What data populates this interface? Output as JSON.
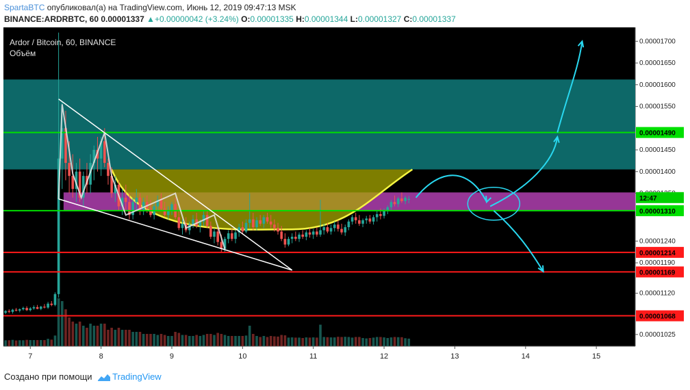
{
  "header": {
    "author": "SpartaBTC",
    "published_text": "опубликовал(а) на TradingView.com, Июнь 12, 2019 09:47:13 MSK",
    "symbol_line": "BINANCE:ARDRBTC, 60",
    "last_price": "0.00001337",
    "change": "+0.00000042 (+3.24%)",
    "open_label": "O:",
    "open": "0.00001335",
    "high_label": "H:",
    "high": "0.00001344",
    "low_label": "L:",
    "low": "0.00001327",
    "close_label": "C:",
    "close": "0.00001337"
  },
  "footer": {
    "created_with": "Создано при помощи",
    "brand": "TradingView"
  },
  "chart_data": {
    "type": "candlestick",
    "title": "Ardor / Bitcoin, 60, BINANCE",
    "volume_label": "Объём",
    "x_ticks": [
      "7",
      "8",
      "9",
      "10",
      "11",
      "12",
      "13",
      "14",
      "15"
    ],
    "y_ticks": [
      "0.00001700",
      "0.00001650",
      "0.00001600",
      "0.00001550",
      "0.00001450",
      "0.00001400",
      "0.00001350",
      "0.00001240",
      "0.00001190",
      "0.00001120",
      "0.00001025"
    ],
    "ylim": [
      9.98e-06,
      1.732e-05
    ],
    "xlim": [
      6.62,
      15.55
    ],
    "current_price_tag": "0.00001337",
    "countdown": "12:47",
    "levels": [
      {
        "value": 1.49e-05,
        "label": "0.00001490",
        "color": "#00e000"
      },
      {
        "value": 1.31e-05,
        "label": "0.00001310",
        "color": "#00e000"
      },
      {
        "value": 1.214e-05,
        "label": "0.00001214",
        "color": "#ff1a1a"
      },
      {
        "value": 1.169e-05,
        "label": "0.00001169",
        "color": "#ff1a1a"
      },
      {
        "value": 1.068e-05,
        "label": "0.00001068",
        "color": "#ff1a1a"
      }
    ],
    "zones": [
      {
        "from": 1.405e-05,
        "to": 1.612e-05,
        "color": "#0f7a7a"
      },
      {
        "from": 1.309e-05,
        "to": 1.352e-05,
        "color": "#b040b0"
      }
    ],
    "cup": {
      "left": [
        8.15,
        1.405e-05
      ],
      "bottom": [
        10.7,
        1.267e-05
      ],
      "right": [
        12.4,
        1.405e-05
      ],
      "color": "#f5f542"
    },
    "wedge": {
      "top": [
        [
          7.4,
          1.567e-05
        ],
        [
          10.7,
          1.173e-05
        ]
      ],
      "bottom": [
        [
          7.4,
          1.337e-05
        ],
        [
          10.7,
          1.173e-05
        ]
      ]
    },
    "candles": [
      [
        6.65,
        1.075e-05,
        1.081e-05,
        1.072e-05,
        1.079e-05
      ],
      [
        6.7,
        1.079e-05,
        1.083e-05,
        1.074e-05,
        1.077e-05
      ],
      [
        6.75,
        1.077e-05,
        1.084e-05,
        1.073e-05,
        1.082e-05
      ],
      [
        6.8,
        1.082e-05,
        1.086e-05,
        1.078e-05,
        1.08e-05
      ],
      [
        6.85,
        1.08e-05,
        1.085e-05,
        1.076e-05,
        1.083e-05
      ],
      [
        6.9,
        1.083e-05,
        1.089e-05,
        1.08e-05,
        1.086e-05
      ],
      [
        6.95,
        1.086e-05,
        1.09e-05,
        1.079e-05,
        1.081e-05
      ],
      [
        7.0,
        1.081e-05,
        1.088e-05,
        1.078e-05,
        1.085e-05
      ],
      [
        7.05,
        1.085e-05,
        1.092e-05,
        1.082e-05,
        1.088e-05
      ],
      [
        7.1,
        1.088e-05,
        1.093e-05,
        1.083e-05,
        1.084e-05
      ],
      [
        7.15,
        1.084e-05,
        1.091e-05,
        1.081e-05,
        1.089e-05
      ],
      [
        7.2,
        1.089e-05,
        1.095e-05,
        1.085e-05,
        1.087e-05
      ],
      [
        7.25,
        1.087e-05,
        1.1e-05,
        1.084e-05,
        1.096e-05
      ],
      [
        7.3,
        1.096e-05,
        1.102e-05,
        1.09e-05,
        1.093e-05
      ],
      [
        7.35,
        1.093e-05,
        1.122e-05,
        1.09e-05,
        1.118e-05
      ],
      [
        7.4,
        1.118e-05,
        1.72e-05,
        1.11e-05,
        1.43e-05
      ],
      [
        7.45,
        1.43e-05,
        1.56e-05,
        1.36e-05,
        1.5e-05
      ],
      [
        7.5,
        1.5e-05,
        1.54e-05,
        1.38e-05,
        1.42e-05
      ],
      [
        7.55,
        1.42e-05,
        1.47e-05,
        1.35e-05,
        1.39e-05
      ],
      [
        7.6,
        1.39e-05,
        1.44e-05,
        1.34e-05,
        1.36e-05
      ],
      [
        7.65,
        1.36e-05,
        1.42e-05,
        1.33e-05,
        1.4e-05
      ],
      [
        7.7,
        1.4e-05,
        1.43e-05,
        1.33e-05,
        1.34e-05
      ],
      [
        7.75,
        1.34e-05,
        1.4e-05,
        1.32e-05,
        1.39e-05
      ],
      [
        7.8,
        1.39e-05,
        1.42e-05,
        1.35e-05,
        1.37e-05
      ],
      [
        7.85,
        1.37e-05,
        1.44e-05,
        1.35e-05,
        1.42e-05
      ],
      [
        7.9,
        1.42e-05,
        1.46e-05,
        1.38e-05,
        1.45e-05
      ],
      [
        7.95,
        1.45e-05,
        1.48e-05,
        1.4e-05,
        1.43e-05
      ],
      [
        8.0,
        1.43e-05,
        1.48e-05,
        1.39e-05,
        1.47e-05
      ],
      [
        8.05,
        1.47e-05,
        1.5e-05,
        1.41e-05,
        1.42e-05
      ],
      [
        8.1,
        1.42e-05,
        1.43e-05,
        1.37e-05,
        1.39e-05
      ],
      [
        8.15,
        1.39e-05,
        1.41e-05,
        1.34e-05,
        1.35e-05
      ],
      [
        8.2,
        1.35e-05,
        1.39e-05,
        1.33e-05,
        1.37e-05
      ],
      [
        8.25,
        1.37e-05,
        1.38e-05,
        1.31e-05,
        1.32e-05
      ],
      [
        8.3,
        1.32e-05,
        1.36e-05,
        1.3e-05,
        1.34e-05
      ],
      [
        8.35,
        1.34e-05,
        1.37e-05,
        1.31e-05,
        1.33e-05
      ],
      [
        8.4,
        1.33e-05,
        1.35e-05,
        1.29e-05,
        1.3e-05
      ],
      [
        8.45,
        1.3e-05,
        1.34e-05,
        1.29e-05,
        1.33e-05
      ],
      [
        8.5,
        1.33e-05,
        1.36e-05,
        1.31e-05,
        1.34e-05
      ],
      [
        8.55,
        1.34e-05,
        1.35e-05,
        1.3e-05,
        1.31e-05
      ],
      [
        8.6,
        1.31e-05,
        1.34e-05,
        1.3e-05,
        1.33e-05
      ],
      [
        8.65,
        1.33e-05,
        1.345e-05,
        1.305e-05,
        1.315e-05
      ],
      [
        8.7,
        1.315e-05,
        1.335e-05,
        1.295e-05,
        1.3e-05
      ],
      [
        8.75,
        1.3e-05,
        1.33e-05,
        1.29e-05,
        1.32e-05
      ],
      [
        8.8,
        1.32e-05,
        1.345e-05,
        1.31e-05,
        1.335e-05
      ],
      [
        8.85,
        1.335e-05,
        1.35e-05,
        1.31e-05,
        1.315e-05
      ],
      [
        8.9,
        1.315e-05,
        1.33e-05,
        1.295e-05,
        1.3e-05
      ],
      [
        8.95,
        1.3e-05,
        1.32e-05,
        1.29e-05,
        1.31e-05
      ],
      [
        9.0,
        1.31e-05,
        1.33e-05,
        1.3e-05,
        1.325e-05
      ],
      [
        9.05,
        1.325e-05,
        1.34e-05,
        1.29e-05,
        1.295e-05
      ],
      [
        9.1,
        1.295e-05,
        1.31e-05,
        1.265e-05,
        1.27e-05
      ],
      [
        9.15,
        1.27e-05,
        1.29e-05,
        1.255e-05,
        1.28e-05
      ],
      [
        9.2,
        1.28e-05,
        1.295e-05,
        1.26e-05,
        1.265e-05
      ],
      [
        9.25,
        1.265e-05,
        1.285e-05,
        1.255e-05,
        1.278e-05
      ],
      [
        9.3,
        1.278e-05,
        1.3e-05,
        1.27e-05,
        1.29e-05
      ],
      [
        9.35,
        1.29e-05,
        1.305e-05,
        1.27e-05,
        1.275e-05
      ],
      [
        9.4,
        1.275e-05,
        1.29e-05,
        1.26e-05,
        1.285e-05
      ],
      [
        9.45,
        1.285e-05,
        1.31e-05,
        1.275e-05,
        1.3e-05
      ],
      [
        9.5,
        1.3e-05,
        1.31e-05,
        1.27e-05,
        1.275e-05
      ],
      [
        9.55,
        1.275e-05,
        1.285e-05,
        1.245e-05,
        1.25e-05
      ],
      [
        9.6,
        1.25e-05,
        1.27e-05,
        1.235e-05,
        1.262e-05
      ],
      [
        9.65,
        1.262e-05,
        1.275e-05,
        1.23e-05,
        1.238e-05
      ],
      [
        9.7,
        1.238e-05,
        1.255e-05,
        1.215e-05,
        1.222e-05
      ],
      [
        9.75,
        1.222e-05,
        1.25e-05,
        1.215e-05,
        1.245e-05
      ],
      [
        9.8,
        1.245e-05,
        1.265e-05,
        1.235e-05,
        1.258e-05
      ],
      [
        9.85,
        1.258e-05,
        1.27e-05,
        1.24e-05,
        1.245e-05
      ],
      [
        9.9,
        1.245e-05,
        1.265e-05,
        1.235e-05,
        1.26e-05
      ],
      [
        9.95,
        1.26e-05,
        1.28e-05,
        1.25e-05,
        1.272e-05
      ],
      [
        10.0,
        1.272e-05,
        1.285e-05,
        1.255e-05,
        1.262e-05
      ],
      [
        10.05,
        1.262e-05,
        1.29e-05,
        1.258e-05,
        1.282e-05
      ],
      [
        10.1,
        1.282e-05,
        1.35e-05,
        1.27e-05,
        1.29e-05
      ],
      [
        10.15,
        1.29e-05,
        1.305e-05,
        1.265e-05,
        1.272e-05
      ],
      [
        10.2,
        1.272e-05,
        1.295e-05,
        1.265e-05,
        1.288e-05
      ],
      [
        10.25,
        1.288e-05,
        1.3e-05,
        1.275e-05,
        1.28e-05
      ],
      [
        10.3,
        1.28e-05,
        1.3e-05,
        1.27e-05,
        1.295e-05
      ],
      [
        10.35,
        1.295e-05,
        1.305e-05,
        1.28e-05,
        1.285e-05
      ],
      [
        10.4,
        1.285e-05,
        1.3e-05,
        1.27e-05,
        1.278e-05
      ],
      [
        10.45,
        1.278e-05,
        1.29e-05,
        1.262e-05,
        1.27e-05
      ],
      [
        10.5,
        1.27e-05,
        1.282e-05,
        1.255e-05,
        1.262e-05
      ],
      [
        10.55,
        1.262e-05,
        1.275e-05,
        1.24e-05,
        1.245e-05
      ],
      [
        10.6,
        1.245e-05,
        1.258e-05,
        1.225e-05,
        1.232e-05
      ],
      [
        10.65,
        1.232e-05,
        1.25e-05,
        1.228e-05,
        1.245e-05
      ],
      [
        10.7,
        1.245e-05,
        1.258e-05,
        1.235e-05,
        1.25e-05
      ],
      [
        10.75,
        1.25e-05,
        1.262e-05,
        1.24e-05,
        1.245e-05
      ],
      [
        10.8,
        1.245e-05,
        1.26e-05,
        1.238e-05,
        1.255e-05
      ],
      [
        10.85,
        1.255e-05,
        1.265e-05,
        1.245e-05,
        1.25e-05
      ],
      [
        10.9,
        1.25e-05,
        1.265e-05,
        1.242e-05,
        1.26e-05
      ],
      [
        10.95,
        1.26e-05,
        1.27e-05,
        1.248e-05,
        1.255e-05
      ],
      [
        11.0,
        1.255e-05,
        1.268e-05,
        1.245e-05,
        1.262e-05
      ],
      [
        11.05,
        1.262e-05,
        1.272e-05,
        1.25e-05,
        1.255e-05
      ],
      [
        11.1,
        1.255e-05,
        1.335e-05,
        1.25e-05,
        1.265e-05
      ],
      [
        11.15,
        1.265e-05,
        1.28e-05,
        1.255e-05,
        1.272e-05
      ],
      [
        11.2,
        1.272e-05,
        1.282e-05,
        1.258e-05,
        1.262e-05
      ],
      [
        11.25,
        1.262e-05,
        1.278e-05,
        1.255e-05,
        1.27e-05
      ],
      [
        11.3,
        1.27e-05,
        1.285e-05,
        1.262e-05,
        1.278e-05
      ],
      [
        11.35,
        1.278e-05,
        1.288e-05,
        1.262e-05,
        1.268e-05
      ],
      [
        11.4,
        1.268e-05,
        1.28e-05,
        1.255e-05,
        1.26e-05
      ],
      [
        11.45,
        1.26e-05,
        1.278e-05,
        1.252e-05,
        1.272e-05
      ],
      [
        11.5,
        1.272e-05,
        1.29e-05,
        1.265e-05,
        1.285e-05
      ],
      [
        11.55,
        1.285e-05,
        1.3e-05,
        1.278e-05,
        1.295e-05
      ],
      [
        11.6,
        1.295e-05,
        1.305e-05,
        1.28e-05,
        1.288e-05
      ],
      [
        11.65,
        1.288e-05,
        1.3e-05,
        1.275e-05,
        1.28e-05
      ],
      [
        11.7,
        1.28e-05,
        1.292e-05,
        1.272e-05,
        1.288e-05
      ],
      [
        11.75,
        1.288e-05,
        1.298e-05,
        1.28e-05,
        1.292e-05
      ],
      [
        11.8,
        1.292e-05,
        1.3e-05,
        1.28e-05,
        1.285e-05
      ],
      [
        11.85,
        1.285e-05,
        1.3e-05,
        1.278e-05,
        1.295e-05
      ],
      [
        11.9,
        1.295e-05,
        1.31e-05,
        1.285e-05,
        1.302e-05
      ],
      [
        11.95,
        1.302e-05,
        1.315e-05,
        1.29e-05,
        1.298e-05
      ],
      [
        12.0,
        1.298e-05,
        1.315e-05,
        1.292e-05,
        1.31e-05
      ],
      [
        12.05,
        1.31e-05,
        1.322e-05,
        1.302e-05,
        1.318e-05
      ],
      [
        12.1,
        1.318e-05,
        1.335e-05,
        1.312e-05,
        1.33e-05
      ],
      [
        12.15,
        1.33e-05,
        1.345e-05,
        1.32e-05,
        1.325e-05
      ],
      [
        12.2,
        1.325e-05,
        1.342e-05,
        1.318e-05,
        1.338e-05
      ],
      [
        12.25,
        1.338e-05,
        1.352e-05,
        1.328e-05,
        1.332e-05
      ],
      [
        12.3,
        1.332e-05,
        1.344e-05,
        1.325e-05,
        1.34e-05
      ],
      [
        12.35,
        1.335e-05,
        1.344e-05,
        1.327e-05,
        1.337e-05
      ]
    ]
  }
}
